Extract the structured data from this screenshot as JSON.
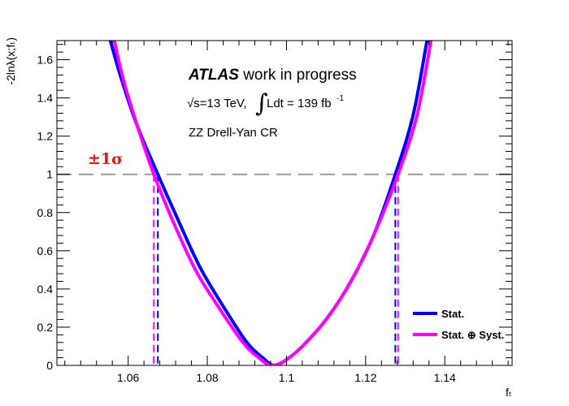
{
  "chart_data": {
    "type": "line",
    "title": "",
    "xlabel": "fₜ",
    "ylabel": "-2lnλ(x;fₜ)",
    "xlim": [
      1.042,
      1.157
    ],
    "ylim": [
      0,
      1.7
    ],
    "x_ticks": [
      "1.06",
      "1.08",
      "1.1",
      "1.12",
      "1.14"
    ],
    "x_tick_values": [
      1.06,
      1.08,
      1.1,
      1.12,
      1.14
    ],
    "y_ticks": [
      "0",
      "0.2",
      "0.4",
      "0.6",
      "0.8",
      "1",
      "1.2",
      "1.4",
      "1.6"
    ],
    "y_tick_values": [
      0,
      0.2,
      0.4,
      0.6,
      0.8,
      1.0,
      1.2,
      1.4,
      1.6
    ],
    "reference_line": {
      "y": 1.0,
      "style": "dashed",
      "color": "#999999",
      "label": "±1σ"
    },
    "series": [
      {
        "name": "Stat.",
        "color": "#0000ff",
        "x": [
          1.0555,
          1.058,
          1.062,
          1.0675,
          1.072,
          1.078,
          1.084,
          1.09,
          1.094,
          1.0968,
          1.1,
          1.104,
          1.11,
          1.116,
          1.122,
          1.1275,
          1.132,
          1.1355
        ],
        "y": [
          1.7,
          1.52,
          1.27,
          1.0,
          0.79,
          0.52,
          0.31,
          0.12,
          0.04,
          0.0,
          0.03,
          0.1,
          0.24,
          0.43,
          0.68,
          1.0,
          1.31,
          1.7
        ],
        "interval": [
          1.0675,
          1.1275
        ]
      },
      {
        "name": "Stat. ⊕ Syst.",
        "color": "#ff00ff",
        "x": [
          1.0565,
          1.059,
          1.063,
          1.0665,
          1.071,
          1.077,
          1.083,
          1.089,
          1.093,
          1.0963,
          1.1,
          1.104,
          1.11,
          1.116,
          1.122,
          1.1282,
          1.133,
          1.1365
        ],
        "y": [
          1.7,
          1.48,
          1.21,
          1.0,
          0.77,
          0.5,
          0.3,
          0.12,
          0.04,
          0.0,
          0.03,
          0.1,
          0.24,
          0.43,
          0.68,
          1.0,
          1.31,
          1.7
        ],
        "interval": [
          1.0665,
          1.1282
        ]
      }
    ],
    "legend": {
      "placement": "bottom-right"
    },
    "annotations": {
      "atlas_bold": "ATLAS",
      "atlas_rest": " work in progress",
      "energy_prefix": "√s=13 TeV,",
      "integral_sign": "∫",
      "lumi_text": "Ldt = 139 fb",
      "lumi_exp": "-1",
      "region": "ZZ Drell-Yan CR"
    }
  }
}
